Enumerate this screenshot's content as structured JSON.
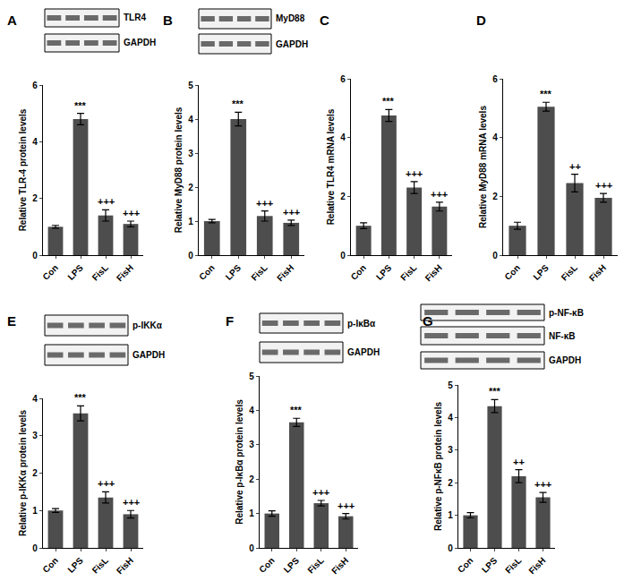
{
  "chart_data": [
    {
      "type": "bar",
      "title": "A",
      "blot_labels": [
        "TLR4",
        "GAPDH"
      ],
      "categories": [
        "Con",
        "LPS",
        "FisL",
        "FisH"
      ],
      "values": [
        1,
        4.8,
        1.4,
        1.1
      ],
      "errors": [
        0.05,
        0.2,
        0.2,
        0.1
      ],
      "significance": [
        null,
        "***",
        "+++",
        "+++"
      ],
      "y_label": "Relative TLR-4 protein levels",
      "color": "#4d4d4d",
      "ylim": [
        0,
        6
      ],
      "yticks": [
        0,
        2,
        4,
        6
      ],
      "grid": false
    },
    {
      "type": "bar",
      "title": "B",
      "blot_labels": [
        "MyD88",
        "GAPDH"
      ],
      "categories": [
        "Con",
        "LPS",
        "FisL",
        "FisH"
      ],
      "values": [
        1,
        4.0,
        1.15,
        0.95
      ],
      "errors": [
        0.05,
        0.2,
        0.15,
        0.08
      ],
      "significance": [
        null,
        "***",
        "+++",
        "+++"
      ],
      "y_label": "Relative MyD88 protein levels",
      "color": "#4d4d4d",
      "ylim": [
        0,
        5
      ],
      "yticks": [
        0,
        1,
        2,
        3,
        4,
        5
      ],
      "grid": false
    },
    {
      "type": "bar",
      "title": "C",
      "categories": [
        "Con",
        "LPS",
        "FisL",
        "FisH"
      ],
      "values": [
        1,
        4.75,
        2.3,
        1.65
      ],
      "errors": [
        0.1,
        0.2,
        0.2,
        0.15
      ],
      "significance": [
        null,
        "***",
        "+++",
        "+++"
      ],
      "y_label": "Relative TLR4 mRNA levels",
      "color": "#4d4d4d",
      "ylim": [
        0,
        6
      ],
      "yticks": [
        0,
        2,
        4,
        6
      ],
      "grid": false
    },
    {
      "type": "bar",
      "title": "D",
      "categories": [
        "Con",
        "LPS",
        "FisL",
        "FisH"
      ],
      "values": [
        1,
        5.05,
        2.45,
        1.95
      ],
      "errors": [
        0.12,
        0.15,
        0.3,
        0.15
      ],
      "significance": [
        null,
        "***",
        "++",
        "+++"
      ],
      "y_label": "Relative MyD88 mRNA levels",
      "color": "#4d4d4d",
      "ylim": [
        0,
        6
      ],
      "yticks": [
        0,
        2,
        4,
        6
      ],
      "grid": false
    },
    {
      "type": "bar",
      "title": "E",
      "blot_labels": [
        "p-IKKα",
        "GAPDH"
      ],
      "categories": [
        "Con",
        "LPS",
        "FisL",
        "FisH"
      ],
      "values": [
        1,
        3.6,
        1.35,
        0.9
      ],
      "errors": [
        0.05,
        0.2,
        0.15,
        0.1
      ],
      "significance": [
        null,
        "***",
        "+++",
        "+++"
      ],
      "y_label": "Relative p-IKKα protein levels",
      "color": "#4d4d4d",
      "ylim": [
        0,
        4
      ],
      "yticks": [
        0,
        1,
        2,
        3,
        4
      ],
      "grid": false
    },
    {
      "type": "bar",
      "title": "F",
      "blot_labels": [
        "p-IκBα",
        "GAPDH"
      ],
      "categories": [
        "Con",
        "LPS",
        "FisL",
        "FisH"
      ],
      "values": [
        1,
        3.65,
        1.3,
        0.92
      ],
      "errors": [
        0.08,
        0.12,
        0.08,
        0.08
      ],
      "significance": [
        null,
        "***",
        "+++",
        "+++"
      ],
      "y_label": "Relative p-IκBα protein levels",
      "color": "#4d4d4d",
      "ylim": [
        0,
        5
      ],
      "yticks": [
        0,
        1,
        2,
        3,
        4,
        5
      ],
      "grid": false
    },
    {
      "type": "bar",
      "title": "G",
      "blot_labels": [
        "p-NF-κB",
        "NF-κB",
        "GAPDH"
      ],
      "categories": [
        "Con",
        "LPS",
        "FisL",
        "FisH"
      ],
      "values": [
        1,
        4.35,
        2.2,
        1.55
      ],
      "errors": [
        0.08,
        0.2,
        0.2,
        0.15
      ],
      "significance": [
        null,
        "***",
        "++",
        "+++"
      ],
      "y_label": "Relative p-NFκB protein levels",
      "color": "#4d4d4d",
      "ylim": [
        0,
        5
      ],
      "yticks": [
        0,
        1,
        2,
        3,
        4,
        5
      ],
      "grid": false
    }
  ]
}
